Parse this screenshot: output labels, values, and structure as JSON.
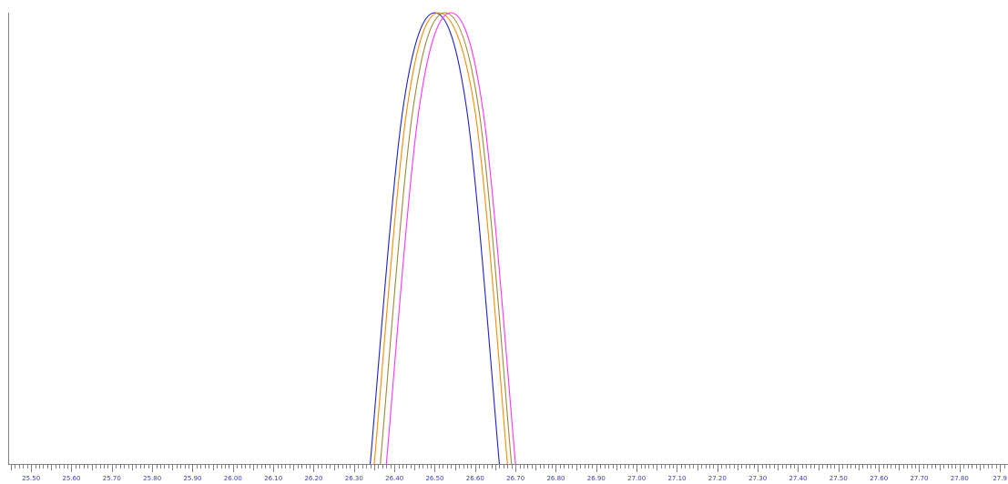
{
  "chart_data": {
    "type": "line",
    "title": "",
    "xlabel": "",
    "ylabel": "",
    "xlim": [
      25.45,
      27.92
    ],
    "ylim": [
      0,
      1.0
    ],
    "grid": false,
    "legend": "none",
    "x_tick_labels": [
      "25.50",
      "25.60",
      "25.70",
      "25.80",
      "25.90",
      "26.00",
      "26.10",
      "26.20",
      "26.30",
      "26.40",
      "26.50",
      "26.60",
      "26.70",
      "26.80",
      "26.90",
      "27.00",
      "27.10",
      "27.20",
      "27.30",
      "27.40",
      "27.50",
      "27.60",
      "27.70",
      "27.80",
      "27.9"
    ],
    "x_tick_values": [
      25.5,
      25.6,
      25.7,
      25.8,
      25.9,
      26.0,
      26.1,
      26.2,
      26.3,
      26.4,
      26.5,
      26.6,
      26.7,
      26.8,
      26.9,
      27.0,
      27.1,
      27.2,
      27.3,
      27.4,
      27.5,
      27.6,
      27.7,
      27.8,
      27.9
    ],
    "series": [
      {
        "color": "#1f1fd0",
        "x": [
          26.34,
          26.42,
          26.5,
          26.58,
          26.66
        ],
        "y": [
          0.0,
          0.78,
          1.0,
          0.78,
          0.0
        ]
      },
      {
        "color": "#ff8a00",
        "x": [
          26.35,
          26.43,
          26.51,
          26.6,
          26.68
        ],
        "y": [
          0.0,
          0.78,
          1.0,
          0.78,
          0.0
        ]
      },
      {
        "color": "#9a8a3a",
        "x": [
          26.365,
          26.445,
          26.525,
          26.61,
          26.69
        ],
        "y": [
          0.0,
          0.78,
          1.0,
          0.78,
          0.0
        ]
      },
      {
        "color": "#ff33ff",
        "x": [
          26.38,
          26.46,
          26.54,
          26.62,
          26.7
        ],
        "y": [
          0.0,
          0.78,
          1.0,
          0.78,
          0.0
        ]
      }
    ]
  }
}
